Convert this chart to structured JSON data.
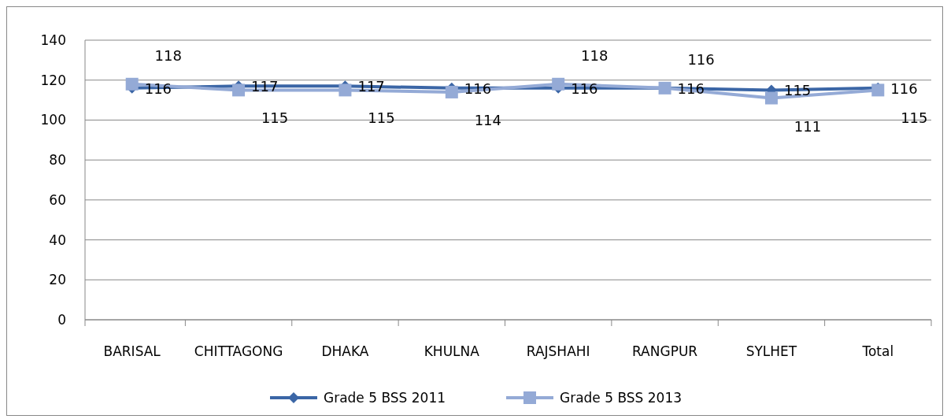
{
  "chart_data": {
    "type": "line",
    "categories": [
      "BARISAL",
      "CHITTAGONG",
      "DHAKA",
      "KHULNA",
      "RAJSHAHI",
      "RANGPUR",
      "SYLHET",
      "Total"
    ],
    "series": [
      {
        "name": "Grade 5 BSS 2011",
        "color": "#3b66a6",
        "marker": "diamond",
        "values": [
          116,
          117,
          117,
          116,
          116,
          116,
          115,
          116
        ]
      },
      {
        "name": "Grade 5 BSS 2013",
        "color": "#94aad6",
        "marker": "square",
        "values": [
          118,
          115,
          115,
          114,
          118,
          116,
          111,
          115
        ]
      }
    ],
    "ylim": [
      0,
      140
    ],
    "yticks": [
      0,
      20,
      40,
      60,
      80,
      100,
      120,
      140
    ],
    "grid": "y",
    "legend": "bottom",
    "data_labels": true
  }
}
